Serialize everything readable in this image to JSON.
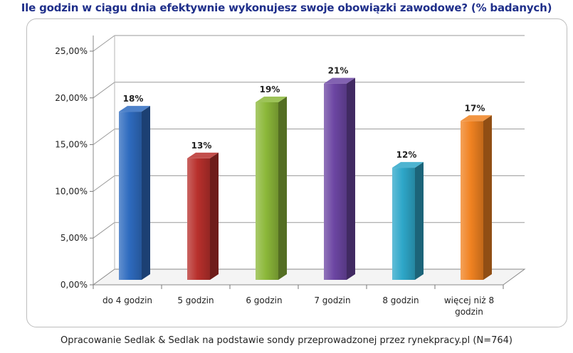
{
  "chart_data": {
    "type": "bar",
    "title": "Ile godzin w ciągu dnia efektywnie wykonujesz swoje obowiązki zawodowe? (% badanych)",
    "categories": [
      [
        "do 4 godzin"
      ],
      [
        "5 godzin"
      ],
      [
        "6 godzin"
      ],
      [
        "7 godzin"
      ],
      [
        "8 godzin"
      ],
      [
        "więcej niż 8",
        "godzin"
      ]
    ],
    "values": [
      18,
      13,
      19,
      21,
      12,
      17
    ],
    "data_labels": [
      "18%",
      "13%",
      "19%",
      "21%",
      "12%",
      "17%"
    ],
    "y_ticks": [
      "0,00%",
      "5,00%",
      "10,00%",
      "15,00%",
      "20,00%",
      "25,00%"
    ],
    "ylim": [
      0,
      25
    ],
    "grid": true,
    "legend": "none",
    "colors": [
      "#2e6bbf",
      "#b8302c",
      "#8cb83a",
      "#6c46a3",
      "#2ea7c9",
      "#f08221"
    ]
  },
  "footer": "Opracowanie Sedlak & Sedlak na podstawie sondy przeprowadzonej przez rynekpracy.pl (N=764)"
}
